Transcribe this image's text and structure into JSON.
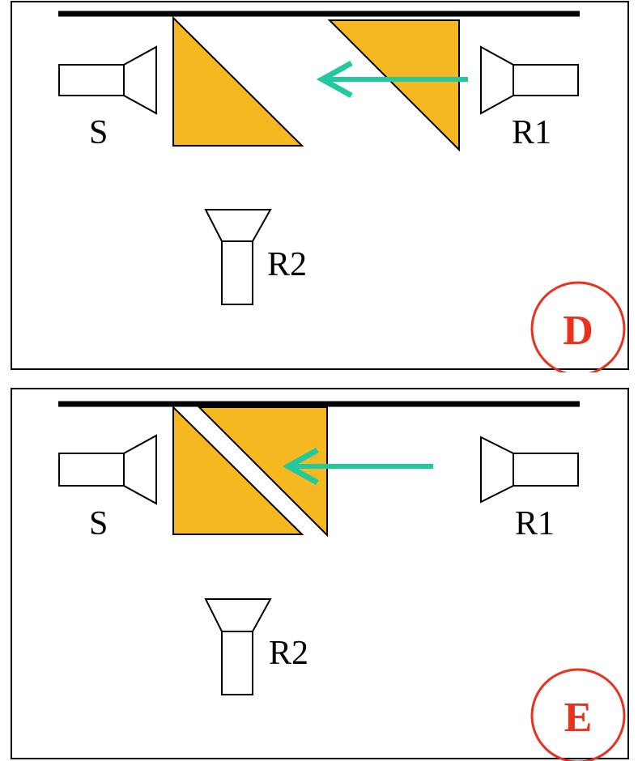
{
  "colors": {
    "prism": "#F5B820",
    "arrow": "#22C9A0",
    "badge": "#E8321E",
    "line": "#000000",
    "background": "#FFFFFF"
  },
  "icons": {
    "source": "horn-antenna-icon",
    "receiver": "horn-antenna-icon"
  },
  "panels": {
    "d": {
      "source_label": "S",
      "receiver1_label": "R1",
      "receiver2_label": "R2",
      "badge": "D"
    },
    "e": {
      "source_label": "S",
      "receiver1_label": "R1",
      "receiver2_label": "R2",
      "badge": "E"
    }
  }
}
